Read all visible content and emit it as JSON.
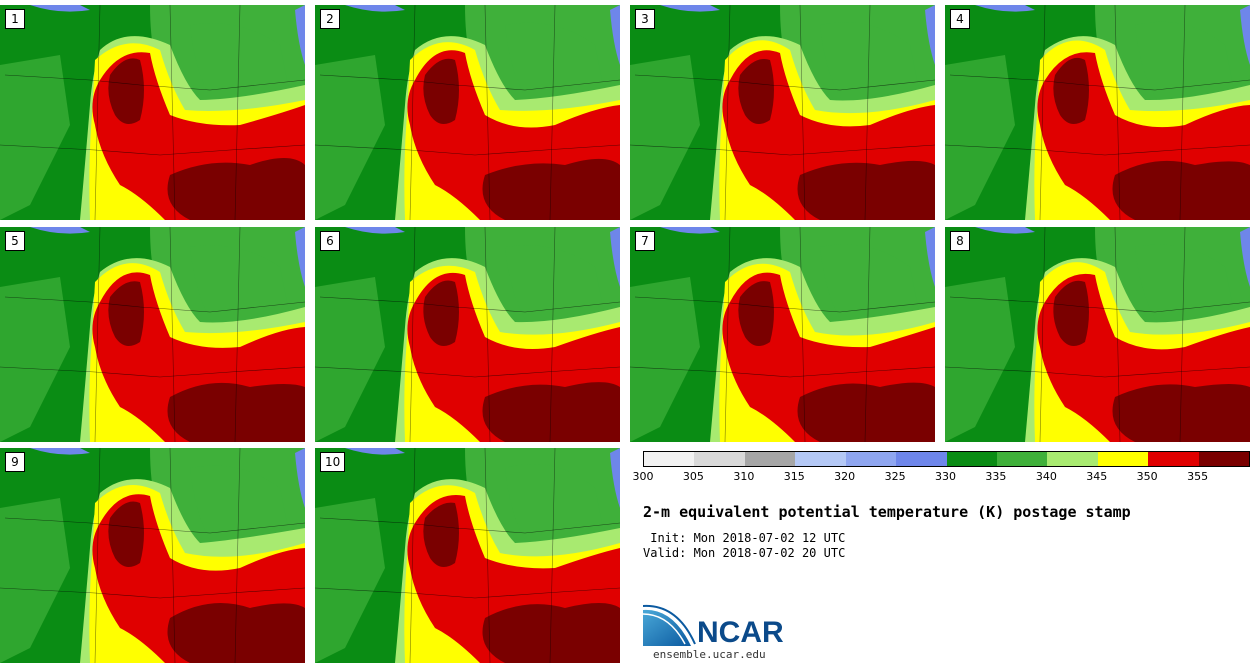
{
  "panels": [
    {
      "label": "1"
    },
    {
      "label": "2"
    },
    {
      "label": "3"
    },
    {
      "label": "4"
    },
    {
      "label": "5"
    },
    {
      "label": "6"
    },
    {
      "label": "7"
    },
    {
      "label": "8"
    },
    {
      "label": "9"
    },
    {
      "label": "10"
    }
  ],
  "colorbar": {
    "ticks": [
      "300",
      "305",
      "310",
      "315",
      "320",
      "325",
      "330",
      "335",
      "340",
      "345",
      "350",
      "355"
    ],
    "colors": [
      "#f2f2f2",
      "#d9d9d9",
      "#a6a6a6",
      "#b4c8f5",
      "#8fa6f0",
      "#6e86ea",
      "#0a8c14",
      "#3fb03a",
      "#a8ea70",
      "#ffff00",
      "#e00000",
      "#7a0000"
    ]
  },
  "title": "2-m equivalent potential temperature (K) postage stamp",
  "init_line": " Init: Mon 2018-07-02 12 UTC",
  "valid_line": "Valid: Mon 2018-07-02 20 UTC",
  "logo": {
    "name": "NCAR",
    "url": "ensemble.ucar.edu"
  }
}
